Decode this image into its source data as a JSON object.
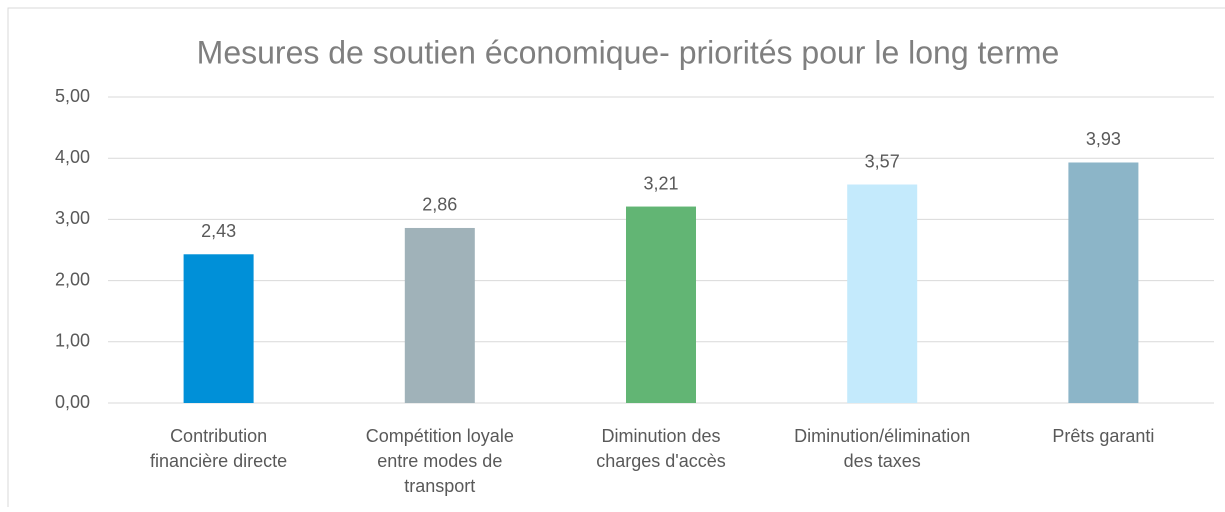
{
  "chart_data": {
    "type": "bar",
    "title": "Mesures de soutien économique- priorités pour le long terme",
    "categories": [
      "Contribution\nfinancière directe",
      "Compétition loyale\nentre modes de\ntransport",
      "Diminution des\ncharges d'accès",
      "Diminution/élimination\ndes taxes",
      "Prêts garanti"
    ],
    "values": [
      2.43,
      2.86,
      3.21,
      3.57,
      3.93
    ],
    "value_labels": [
      "2,43",
      "2,86",
      "3,21",
      "3,57",
      "3,93"
    ],
    "colors": [
      "#0090d8",
      "#a0b2b9",
      "#62b574",
      "#c4eafc",
      "#8cb5c8"
    ],
    "ylim": [
      0,
      5
    ],
    "yticks": [
      {
        "value": 0,
        "label": "0,00"
      },
      {
        "value": 1,
        "label": "1,00"
      },
      {
        "value": 2,
        "label": "2,00"
      },
      {
        "value": 3,
        "label": "3,00"
      },
      {
        "value": 4,
        "label": "4,00"
      },
      {
        "value": 5,
        "label": "5,00"
      }
    ],
    "grid": true
  }
}
